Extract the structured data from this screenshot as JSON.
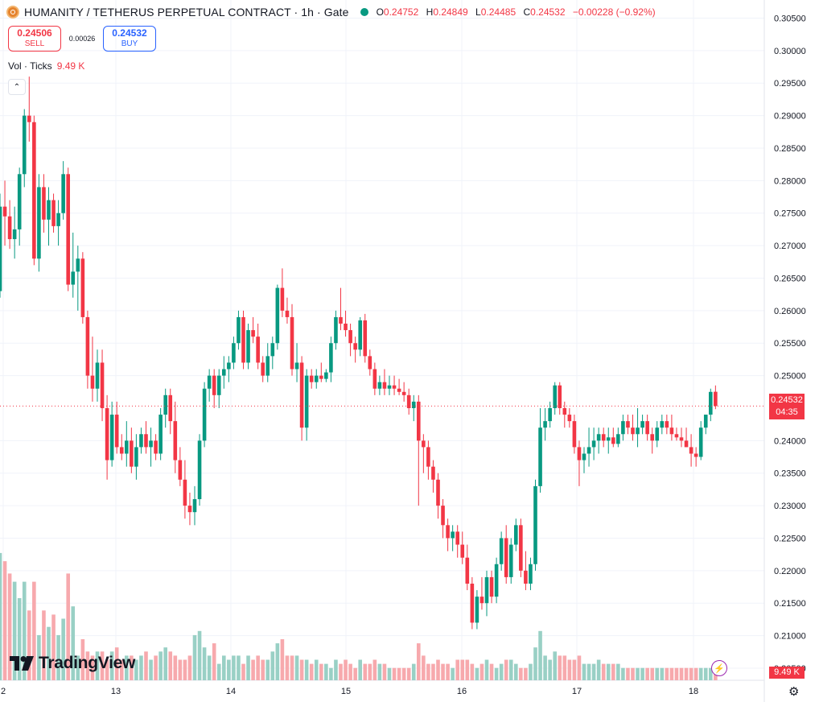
{
  "header": {
    "title": "HUMANITY / TETHERUS PERPETUAL CONTRACT · 1h · Gate",
    "o_label": "O",
    "o_value": "0.24752",
    "h_label": "H",
    "h_value": "0.24849",
    "l_label": "L",
    "l_value": "0.24485",
    "c_label": "C",
    "c_value": "0.24532",
    "change": "−0.00228 (−0.92%)"
  },
  "trade": {
    "sell_price": "0.24506",
    "sell_label": "SELL",
    "spread": "0.00026",
    "buy_price": "0.24532",
    "buy_label": "BUY"
  },
  "volume_legend": {
    "label": "Vol · Ticks",
    "value": "9.49 K"
  },
  "price_tag": {
    "price": "0.24532",
    "countdown": "04:35"
  },
  "volume_tag": "9.49 K",
  "logo_text": "TradingView",
  "colors": {
    "up": "#089981",
    "down": "#f23645",
    "up_vol": "#99d0c5",
    "down_vol": "#f7a9ad",
    "grid": "#f0f3fa"
  },
  "chart_data": {
    "type": "candlestick",
    "interval": "1h",
    "y_axis_ticks": [
      "0.30500",
      "0.30000",
      "0.29500",
      "0.29000",
      "0.28500",
      "0.28000",
      "0.27500",
      "0.27000",
      "0.26500",
      "0.26000",
      "0.25500",
      "0.25000",
      "0.24000",
      "0.23500",
      "0.23000",
      "0.22500",
      "0.22000",
      "0.21500",
      "0.21000",
      "0.20500"
    ],
    "ylim": [
      0.2045,
      0.3063
    ],
    "x_axis_ticks": [
      "2",
      "13",
      "14",
      "15",
      "16",
      "17",
      "18"
    ],
    "current_price": 0.24532,
    "candles": [
      [
        0.263,
        0.278,
        0.262,
        0.276
      ],
      [
        0.276,
        0.28,
        0.27,
        0.2745
      ],
      [
        0.2745,
        0.277,
        0.2695,
        0.271
      ],
      [
        0.271,
        0.276,
        0.268,
        0.2725
      ],
      [
        0.2725,
        0.282,
        0.27,
        0.281
      ],
      [
        0.281,
        0.291,
        0.279,
        0.29
      ],
      [
        0.29,
        0.296,
        0.286,
        0.289
      ],
      [
        0.289,
        0.29,
        0.267,
        0.268
      ],
      [
        0.268,
        0.281,
        0.266,
        0.279
      ],
      [
        0.279,
        0.281,
        0.272,
        0.274
      ],
      [
        0.274,
        0.279,
        0.27,
        0.277
      ],
      [
        0.277,
        0.278,
        0.272,
        0.273
      ],
      [
        0.273,
        0.277,
        0.27,
        0.275
      ],
      [
        0.275,
        0.283,
        0.274,
        0.281
      ],
      [
        0.281,
        0.282,
        0.263,
        0.264
      ],
      [
        0.264,
        0.272,
        0.262,
        0.266
      ],
      [
        0.266,
        0.27,
        0.26,
        0.268
      ],
      [
        0.268,
        0.269,
        0.258,
        0.259
      ],
      [
        0.259,
        0.26,
        0.248,
        0.25
      ],
      [
        0.25,
        0.256,
        0.246,
        0.248
      ],
      [
        0.248,
        0.254,
        0.246,
        0.252
      ],
      [
        0.252,
        0.254,
        0.243,
        0.245
      ],
      [
        0.245,
        0.247,
        0.234,
        0.237
      ],
      [
        0.237,
        0.246,
        0.236,
        0.244
      ],
      [
        0.244,
        0.246,
        0.238,
        0.239
      ],
      [
        0.239,
        0.241,
        0.237,
        0.238
      ],
      [
        0.238,
        0.243,
        0.236,
        0.24
      ],
      [
        0.24,
        0.242,
        0.235,
        0.236
      ],
      [
        0.236,
        0.241,
        0.234,
        0.239
      ],
      [
        0.239,
        0.242,
        0.238,
        0.241
      ],
      [
        0.241,
        0.243,
        0.238,
        0.239
      ],
      [
        0.239,
        0.242,
        0.236,
        0.24
      ],
      [
        0.24,
        0.241,
        0.237,
        0.238
      ],
      [
        0.238,
        0.245,
        0.237,
        0.244
      ],
      [
        0.244,
        0.248,
        0.242,
        0.247
      ],
      [
        0.247,
        0.248,
        0.241,
        0.243
      ],
      [
        0.243,
        0.246,
        0.235,
        0.237
      ],
      [
        0.237,
        0.239,
        0.233,
        0.234
      ],
      [
        0.234,
        0.237,
        0.228,
        0.23
      ],
      [
        0.23,
        0.232,
        0.227,
        0.229
      ],
      [
        0.229,
        0.233,
        0.227,
        0.231
      ],
      [
        0.231,
        0.241,
        0.23,
        0.24
      ],
      [
        0.24,
        0.249,
        0.239,
        0.248
      ],
      [
        0.248,
        0.251,
        0.246,
        0.25
      ],
      [
        0.25,
        0.251,
        0.245,
        0.247
      ],
      [
        0.247,
        0.251,
        0.245,
        0.25
      ],
      [
        0.25,
        0.253,
        0.248,
        0.251
      ],
      [
        0.251,
        0.253,
        0.249,
        0.252
      ],
      [
        0.252,
        0.256,
        0.251,
        0.255
      ],
      [
        0.255,
        0.26,
        0.254,
        0.259
      ],
      [
        0.259,
        0.26,
        0.251,
        0.252
      ],
      [
        0.252,
        0.258,
        0.251,
        0.257
      ],
      [
        0.257,
        0.259,
        0.255,
        0.256
      ],
      [
        0.256,
        0.258,
        0.251,
        0.252
      ],
      [
        0.252,
        0.253,
        0.249,
        0.25
      ],
      [
        0.25,
        0.255,
        0.249,
        0.253
      ],
      [
        0.253,
        0.256,
        0.251,
        0.255
      ],
      [
        0.255,
        0.264,
        0.254,
        0.2635
      ],
      [
        0.2635,
        0.2665,
        0.259,
        0.26
      ],
      [
        0.26,
        0.262,
        0.258,
        0.259
      ],
      [
        0.259,
        0.261,
        0.25,
        0.251
      ],
      [
        0.251,
        0.255,
        0.249,
        0.252
      ],
      [
        0.252,
        0.253,
        0.24,
        0.242
      ],
      [
        0.242,
        0.251,
        0.24,
        0.25
      ],
      [
        0.25,
        0.251,
        0.248,
        0.249
      ],
      [
        0.249,
        0.251,
        0.248,
        0.25
      ],
      [
        0.25,
        0.252,
        0.249,
        0.2495
      ],
      [
        0.2495,
        0.251,
        0.249,
        0.2505
      ],
      [
        0.2505,
        0.256,
        0.249,
        0.255
      ],
      [
        0.255,
        0.26,
        0.254,
        0.259
      ],
      [
        0.259,
        0.2635,
        0.257,
        0.258
      ],
      [
        0.258,
        0.26,
        0.256,
        0.257
      ],
      [
        0.257,
        0.258,
        0.253,
        0.255
      ],
      [
        0.255,
        0.256,
        0.252,
        0.254
      ],
      [
        0.254,
        0.259,
        0.253,
        0.2585
      ],
      [
        0.2585,
        0.2595,
        0.252,
        0.253
      ],
      [
        0.253,
        0.254,
        0.25,
        0.251
      ],
      [
        0.251,
        0.252,
        0.247,
        0.248
      ],
      [
        0.248,
        0.25,
        0.247,
        0.249
      ],
      [
        0.249,
        0.251,
        0.247,
        0.248
      ],
      [
        0.248,
        0.25,
        0.247,
        0.2485
      ],
      [
        0.2485,
        0.25,
        0.247,
        0.248
      ],
      [
        0.248,
        0.2495,
        0.247,
        0.2475
      ],
      [
        0.2475,
        0.249,
        0.246,
        0.247
      ],
      [
        0.247,
        0.248,
        0.244,
        0.245
      ],
      [
        0.245,
        0.247,
        0.243,
        0.246
      ],
      [
        0.246,
        0.247,
        0.23,
        0.24
      ],
      [
        0.24,
        0.241,
        0.235,
        0.239
      ],
      [
        0.239,
        0.24,
        0.234,
        0.236
      ],
      [
        0.236,
        0.237,
        0.232,
        0.234
      ],
      [
        0.234,
        0.235,
        0.228,
        0.23
      ],
      [
        0.23,
        0.231,
        0.225,
        0.227
      ],
      [
        0.227,
        0.228,
        0.223,
        0.225
      ],
      [
        0.225,
        0.227,
        0.223,
        0.226
      ],
      [
        0.226,
        0.227,
        0.222,
        0.224
      ],
      [
        0.224,
        0.226,
        0.221,
        0.222
      ],
      [
        0.222,
        0.224,
        0.217,
        0.218
      ],
      [
        0.218,
        0.219,
        0.211,
        0.212
      ],
      [
        0.212,
        0.217,
        0.211,
        0.216
      ],
      [
        0.216,
        0.219,
        0.214,
        0.215
      ],
      [
        0.215,
        0.22,
        0.213,
        0.219
      ],
      [
        0.219,
        0.22,
        0.215,
        0.216
      ],
      [
        0.216,
        0.222,
        0.215,
        0.221
      ],
      [
        0.221,
        0.226,
        0.22,
        0.225
      ],
      [
        0.225,
        0.227,
        0.218,
        0.219
      ],
      [
        0.219,
        0.225,
        0.218,
        0.224
      ],
      [
        0.224,
        0.228,
        0.223,
        0.227
      ],
      [
        0.227,
        0.228,
        0.219,
        0.22
      ],
      [
        0.22,
        0.223,
        0.217,
        0.218
      ],
      [
        0.218,
        0.222,
        0.217,
        0.221
      ],
      [
        0.221,
        0.234,
        0.22,
        0.233
      ],
      [
        0.233,
        0.245,
        0.232,
        0.242
      ],
      [
        0.242,
        0.245,
        0.24,
        0.243
      ],
      [
        0.243,
        0.246,
        0.242,
        0.245
      ],
      [
        0.245,
        0.249,
        0.244,
        0.2485
      ],
      [
        0.2485,
        0.249,
        0.244,
        0.245
      ],
      [
        0.245,
        0.246,
        0.242,
        0.244
      ],
      [
        0.244,
        0.245,
        0.242,
        0.243
      ],
      [
        0.243,
        0.244,
        0.238,
        0.239
      ],
      [
        0.239,
        0.24,
        0.233,
        0.237
      ],
      [
        0.237,
        0.239,
        0.235,
        0.238
      ],
      [
        0.238,
        0.242,
        0.236,
        0.239
      ],
      [
        0.239,
        0.242,
        0.237,
        0.24
      ],
      [
        0.24,
        0.242,
        0.238,
        0.241
      ],
      [
        0.241,
        0.242,
        0.239,
        0.24
      ],
      [
        0.24,
        0.242,
        0.238,
        0.2405
      ],
      [
        0.2405,
        0.242,
        0.239,
        0.2395
      ],
      [
        0.2395,
        0.242,
        0.239,
        0.241
      ],
      [
        0.241,
        0.244,
        0.24,
        0.243
      ],
      [
        0.243,
        0.244,
        0.241,
        0.242
      ],
      [
        0.242,
        0.244,
        0.24,
        0.241
      ],
      [
        0.241,
        0.245,
        0.239,
        0.242
      ],
      [
        0.242,
        0.244,
        0.241,
        0.243
      ],
      [
        0.243,
        0.244,
        0.24,
        0.241
      ],
      [
        0.241,
        0.242,
        0.238,
        0.24
      ],
      [
        0.24,
        0.243,
        0.239,
        0.242
      ],
      [
        0.242,
        0.244,
        0.241,
        0.243
      ],
      [
        0.243,
        0.244,
        0.241,
        0.242
      ],
      [
        0.242,
        0.244,
        0.24,
        0.241
      ],
      [
        0.241,
        0.242,
        0.24,
        0.2405
      ],
      [
        0.2405,
        0.242,
        0.239,
        0.24
      ],
      [
        0.24,
        0.242,
        0.239,
        0.239
      ],
      [
        0.239,
        0.241,
        0.236,
        0.238
      ],
      [
        0.238,
        0.239,
        0.236,
        0.2375
      ],
      [
        0.2375,
        0.243,
        0.237,
        0.242
      ],
      [
        0.242,
        0.244,
        0.241,
        0.244
      ],
      [
        0.244,
        0.248,
        0.243,
        0.2475
      ],
      [
        0.24752,
        0.24849,
        0.24485,
        0.24532
      ]
    ],
    "volumes": [
      0.31,
      0.29,
      0.26,
      0.24,
      0.2,
      0.24,
      0.17,
      0.24,
      0.11,
      0.17,
      0.13,
      0.16,
      0.11,
      0.15,
      0.26,
      0.18,
      0.06,
      0.1,
      0.07,
      0.06,
      0.07,
      0.07,
      0.05,
      0.07,
      0.08,
      0.05,
      0.06,
      0.06,
      0.05,
      0.06,
      0.07,
      0.05,
      0.06,
      0.07,
      0.08,
      0.07,
      0.06,
      0.05,
      0.05,
      0.06,
      0.11,
      0.12,
      0.08,
      0.06,
      0.09,
      0.04,
      0.06,
      0.05,
      0.06,
      0.06,
      0.04,
      0.06,
      0.05,
      0.06,
      0.05,
      0.05,
      0.07,
      0.09,
      0.1,
      0.06,
      0.06,
      0.06,
      0.05,
      0.05,
      0.04,
      0.05,
      0.04,
      0.04,
      0.03,
      0.05,
      0.04,
      0.05,
      0.04,
      0.03,
      0.05,
      0.04,
      0.04,
      0.05,
      0.04,
      0.04,
      0.03,
      0.03,
      0.03,
      0.03,
      0.03,
      0.04,
      0.09,
      0.06,
      0.04,
      0.04,
      0.05,
      0.04,
      0.04,
      0.03,
      0.05,
      0.05,
      0.05,
      0.04,
      0.03,
      0.04,
      0.05,
      0.04,
      0.03,
      0.04,
      0.05,
      0.05,
      0.04,
      0.03,
      0.03,
      0.04,
      0.08,
      0.12,
      0.06,
      0.05,
      0.07,
      0.06,
      0.06,
      0.05,
      0.05,
      0.06,
      0.04,
      0.04,
      0.04,
      0.05,
      0.04,
      0.04,
      0.04,
      0.04,
      0.03,
      0.03,
      0.03,
      0.03,
      0.03,
      0.03,
      0.03,
      0.03,
      0.03,
      0.03,
      0.03,
      0.03,
      0.03,
      0.03,
      0.03,
      0.03,
      0.03,
      0.03,
      0.03,
      0.03
    ]
  }
}
